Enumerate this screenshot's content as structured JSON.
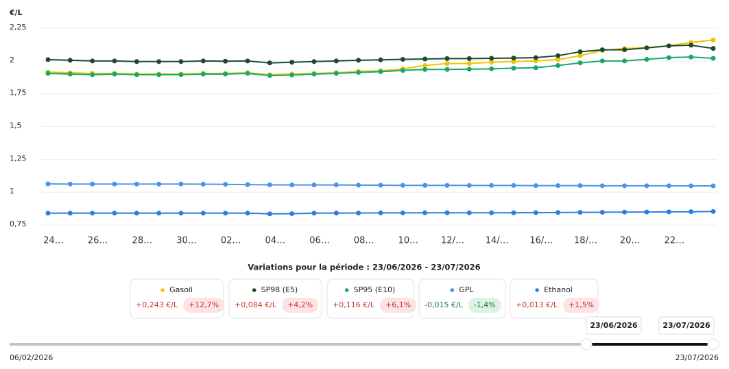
{
  "chart_data": {
    "type": "line",
    "y_unit": "€/L",
    "categories": [
      "24…",
      null,
      "26…",
      null,
      "28…",
      null,
      "30…",
      null,
      "02…",
      null,
      "04…",
      null,
      "06…",
      null,
      "08…",
      null,
      "10…",
      null,
      "12/…",
      null,
      "14/…",
      null,
      "16/…",
      null,
      "18/…",
      null,
      "20…",
      null,
      "22…",
      null,
      null
    ],
    "ylim": [
      0.7,
      2.25
    ],
    "yticks": [
      {
        "value": 0.75,
        "label": "0,75"
      },
      1,
      {
        "value": 1.25,
        "label": "1,25"
      },
      {
        "value": 1.5,
        "label": "1,5"
      },
      {
        "value": 1.75,
        "label": "1,75"
      },
      2,
      {
        "value": 2.25,
        "label": "2,25"
      }
    ],
    "grid": true,
    "series": [
      {
        "name": "Gasoil",
        "color": "#f2c500",
        "variation": "+0,243 €/L",
        "variation_pct": "+12,7%",
        "values": [
          1.915,
          1.91,
          1.905,
          1.905,
          1.9,
          1.9,
          1.9,
          1.905,
          1.905,
          1.91,
          1.895,
          1.9,
          1.905,
          1.91,
          1.92,
          1.925,
          1.94,
          1.965,
          1.98,
          1.98,
          1.99,
          1.995,
          2.0,
          2.01,
          2.04,
          2.08,
          2.095,
          2.1,
          2.115,
          2.14,
          2.16
        ]
      },
      {
        "name": "SP98 (E5)",
        "color": "#1d4a2b",
        "variation": "+0,084 €/L",
        "variation_pct": "+4,2%",
        "values": [
          2.01,
          2.005,
          2.0,
          2.0,
          1.995,
          1.995,
          1.995,
          2.0,
          1.998,
          2.0,
          1.985,
          1.99,
          1.995,
          2.0,
          2.005,
          2.008,
          2.012,
          2.015,
          2.018,
          2.018,
          2.02,
          2.022,
          2.025,
          2.04,
          2.07,
          2.085,
          2.085,
          2.1,
          2.115,
          2.12,
          2.095
        ]
      },
      {
        "name": "SP95 (E10)",
        "color": "#17a86b",
        "variation": "+0,116 €/L",
        "variation_pct": "+6,1%",
        "values": [
          1.905,
          1.9,
          1.895,
          1.9,
          1.895,
          1.895,
          1.895,
          1.9,
          1.9,
          1.905,
          1.888,
          1.893,
          1.9,
          1.905,
          1.912,
          1.918,
          1.928,
          1.935,
          1.935,
          1.937,
          1.94,
          1.945,
          1.948,
          1.965,
          1.985,
          2.0,
          2.0,
          2.012,
          2.025,
          2.03,
          2.02
        ]
      },
      {
        "name": "GPL",
        "color": "#4d92ea",
        "variation": "-0,015 €/L",
        "variation_pct": "-1,4%",
        "values": [
          1.063,
          1.062,
          1.062,
          1.062,
          1.062,
          1.062,
          1.062,
          1.061,
          1.06,
          1.058,
          1.056,
          1.055,
          1.055,
          1.055,
          1.054,
          1.053,
          1.052,
          1.052,
          1.052,
          1.051,
          1.051,
          1.051,
          1.05,
          1.05,
          1.05,
          1.049,
          1.049,
          1.049,
          1.049,
          1.048,
          1.048
        ]
      },
      {
        "name": "Ethanol",
        "color": "#2b7de2",
        "variation": "+0,013 €/L",
        "variation_pct": "+1,5%",
        "values": [
          0.84,
          0.84,
          0.84,
          0.84,
          0.84,
          0.84,
          0.84,
          0.84,
          0.84,
          0.84,
          0.835,
          0.836,
          0.84,
          0.841,
          0.841,
          0.842,
          0.842,
          0.843,
          0.843,
          0.843,
          0.843,
          0.843,
          0.844,
          0.845,
          0.846,
          0.847,
          0.848,
          0.849,
          0.85,
          0.851,
          0.853
        ]
      }
    ],
    "variations_title": "Variations pour la période : 23/06/2026 - 23/07/2026",
    "slider": {
      "min_label": "06/02/2026",
      "max_label": "23/07/2026",
      "start_label": "23/06/2026",
      "end_label": "23/07/2026"
    }
  }
}
